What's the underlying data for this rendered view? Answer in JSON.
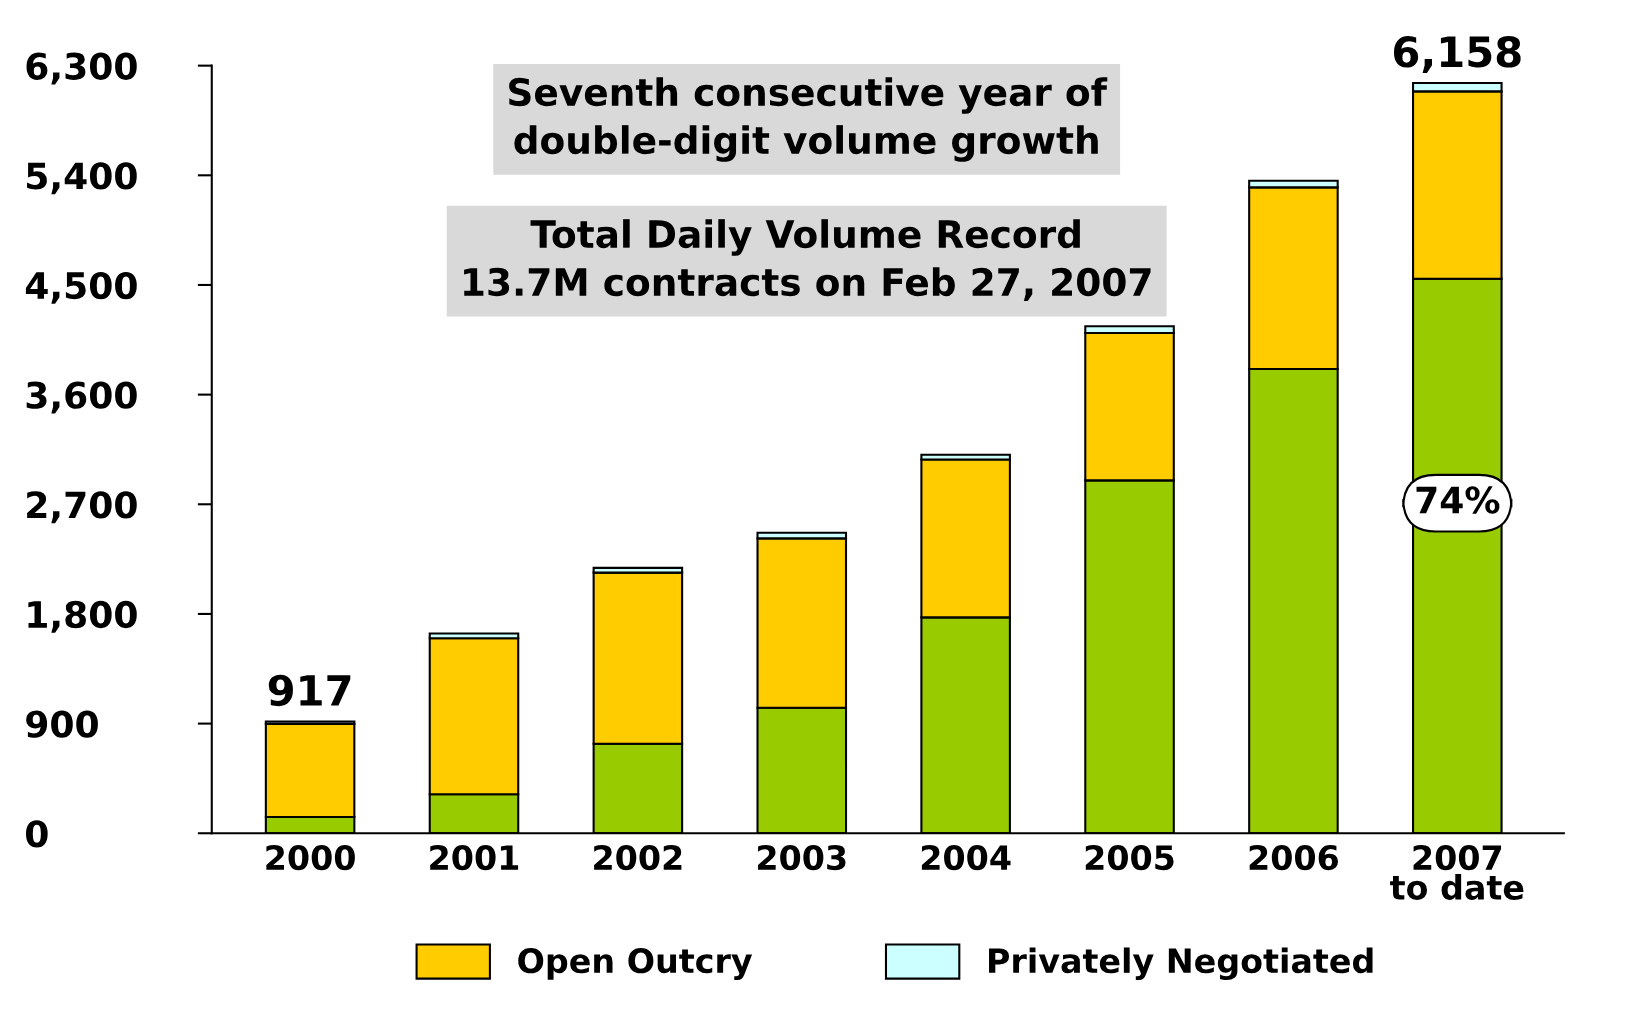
{
  "chart_data": {
    "type": "bar",
    "stacked": true,
    "categories": [
      "2000",
      "2001",
      "2002",
      "2003",
      "2004",
      "2005",
      "2006",
      "2007\nto date"
    ],
    "series": [
      {
        "color": "#99cc00",
        "values": [
          133,
          320,
          734,
          1030,
          1772,
          2896,
          3810,
          4551
        ]
      },
      {
        "name": "Open Outcry",
        "color": "#ffcc00",
        "values": [
          765,
          1280,
          1405,
          1390,
          1296,
          1210,
          1491,
          1538
        ]
      },
      {
        "name": "Privately Negotiated",
        "color": "#ccffff",
        "values": [
          19,
          39,
          39,
          47,
          39,
          55,
          54,
          69
        ]
      }
    ],
    "totals": [
      "917",
      null,
      null,
      null,
      null,
      null,
      null,
      "6,158"
    ],
    "ylim": [
      0,
      6300
    ],
    "yticks": [
      0,
      900,
      {
        "value": 1800,
        "label": "1,800"
      },
      {
        "value": 2700,
        "label": "2,700"
      },
      {
        "value": 3600,
        "label": "3,600"
      },
      {
        "value": 4500,
        "label": "4,500"
      },
      {
        "value": 5400,
        "label": "5,400"
      },
      {
        "value": 6300,
        "label": "6,300"
      }
    ],
    "grid": false,
    "legend": "bottom",
    "annotations": [
      "Seventh consecutive year of\ndouble-digit volume growth",
      "Total Daily Volume Record\n13.7M contracts on Feb 27, 2007",
      "74%"
    ]
  }
}
